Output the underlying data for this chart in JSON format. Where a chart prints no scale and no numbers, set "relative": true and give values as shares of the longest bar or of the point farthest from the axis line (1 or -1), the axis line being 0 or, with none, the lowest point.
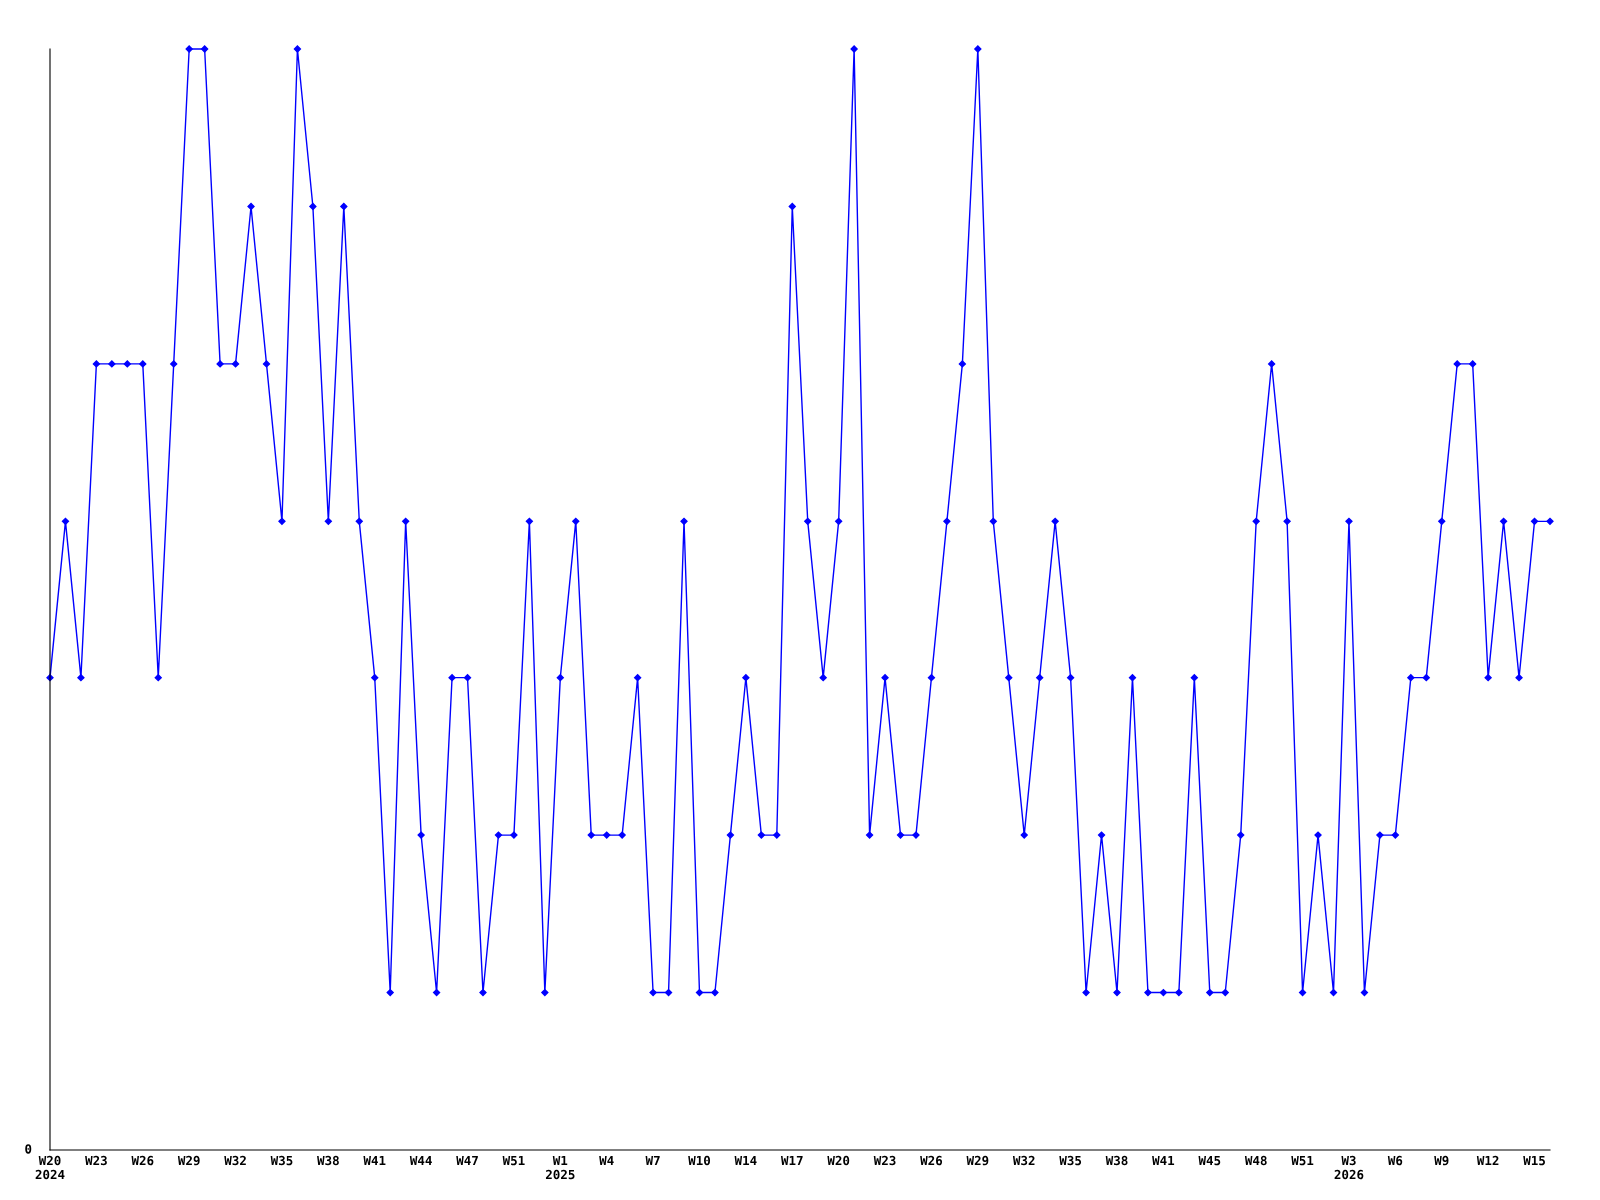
{
  "chart_data": {
    "type": "line",
    "relative": true,
    "marker": "diamond",
    "line_style": "solid",
    "grid": false,
    "categories": [
      "W20\n2024",
      null,
      null,
      "W23",
      null,
      null,
      "W26",
      null,
      null,
      "W29",
      null,
      null,
      "W32",
      null,
      null,
      "W35",
      null,
      null,
      "W38",
      null,
      null,
      "W41",
      null,
      null,
      "W44",
      null,
      null,
      "W47",
      null,
      null,
      "W51",
      null,
      null,
      "W1\n2025",
      null,
      null,
      "W4",
      null,
      null,
      "W7",
      null,
      null,
      "W10",
      null,
      null,
      "W14",
      null,
      null,
      "W17",
      null,
      null,
      "W20",
      null,
      null,
      "W23",
      null,
      null,
      "W26",
      null,
      null,
      "W29",
      null,
      null,
      "W32",
      null,
      null,
      "W35",
      null,
      null,
      "W38",
      null,
      null,
      "W41",
      null,
      null,
      "W45",
      null,
      null,
      "W48",
      null,
      null,
      "W51",
      null,
      null,
      "W3\n2026",
      null,
      null,
      "W6",
      null,
      null,
      "W9",
      null,
      null,
      "W12",
      null,
      null,
      "W15",
      null
    ],
    "series": [
      {
        "color": "#0000ff",
        "values": [
          0.429,
          0.571,
          0.429,
          0.714,
          0.714,
          0.714,
          0.714,
          0.429,
          0.714,
          1,
          1,
          0.714,
          0.714,
          0.857,
          0.714,
          0.571,
          1,
          0.857,
          0.571,
          0.857,
          0.571,
          0.429,
          0.143,
          0.571,
          0.286,
          0.143,
          0.429,
          0.429,
          0.143,
          0.286,
          0.286,
          0.571,
          0.143,
          0.429,
          0.571,
          0.286,
          0.286,
          0.286,
          0.429,
          0.143,
          0.143,
          0.571,
          0.143,
          0.143,
          0.286,
          0.429,
          0.286,
          0.286,
          0.857,
          0.571,
          0.429,
          0.571,
          1,
          0.286,
          0.429,
          0.286,
          0.286,
          0.429,
          0.571,
          0.714,
          1,
          0.571,
          0.429,
          0.286,
          0.429,
          0.571,
          0.429,
          0.143,
          0.286,
          0.143,
          0.429,
          0.143,
          0.143,
          0.143,
          0.429,
          0.143,
          0.143,
          0.286,
          0.571,
          0.714,
          0.571,
          0.143,
          0.286,
          0.143,
          0.571,
          0.143,
          0.286,
          0.286,
          0.429,
          0.429,
          0.571,
          0.714,
          0.714,
          0.429,
          0.571,
          0.429,
          0.571,
          0.571
        ]
      }
    ],
    "annotations": [
      "0"
    ]
  }
}
